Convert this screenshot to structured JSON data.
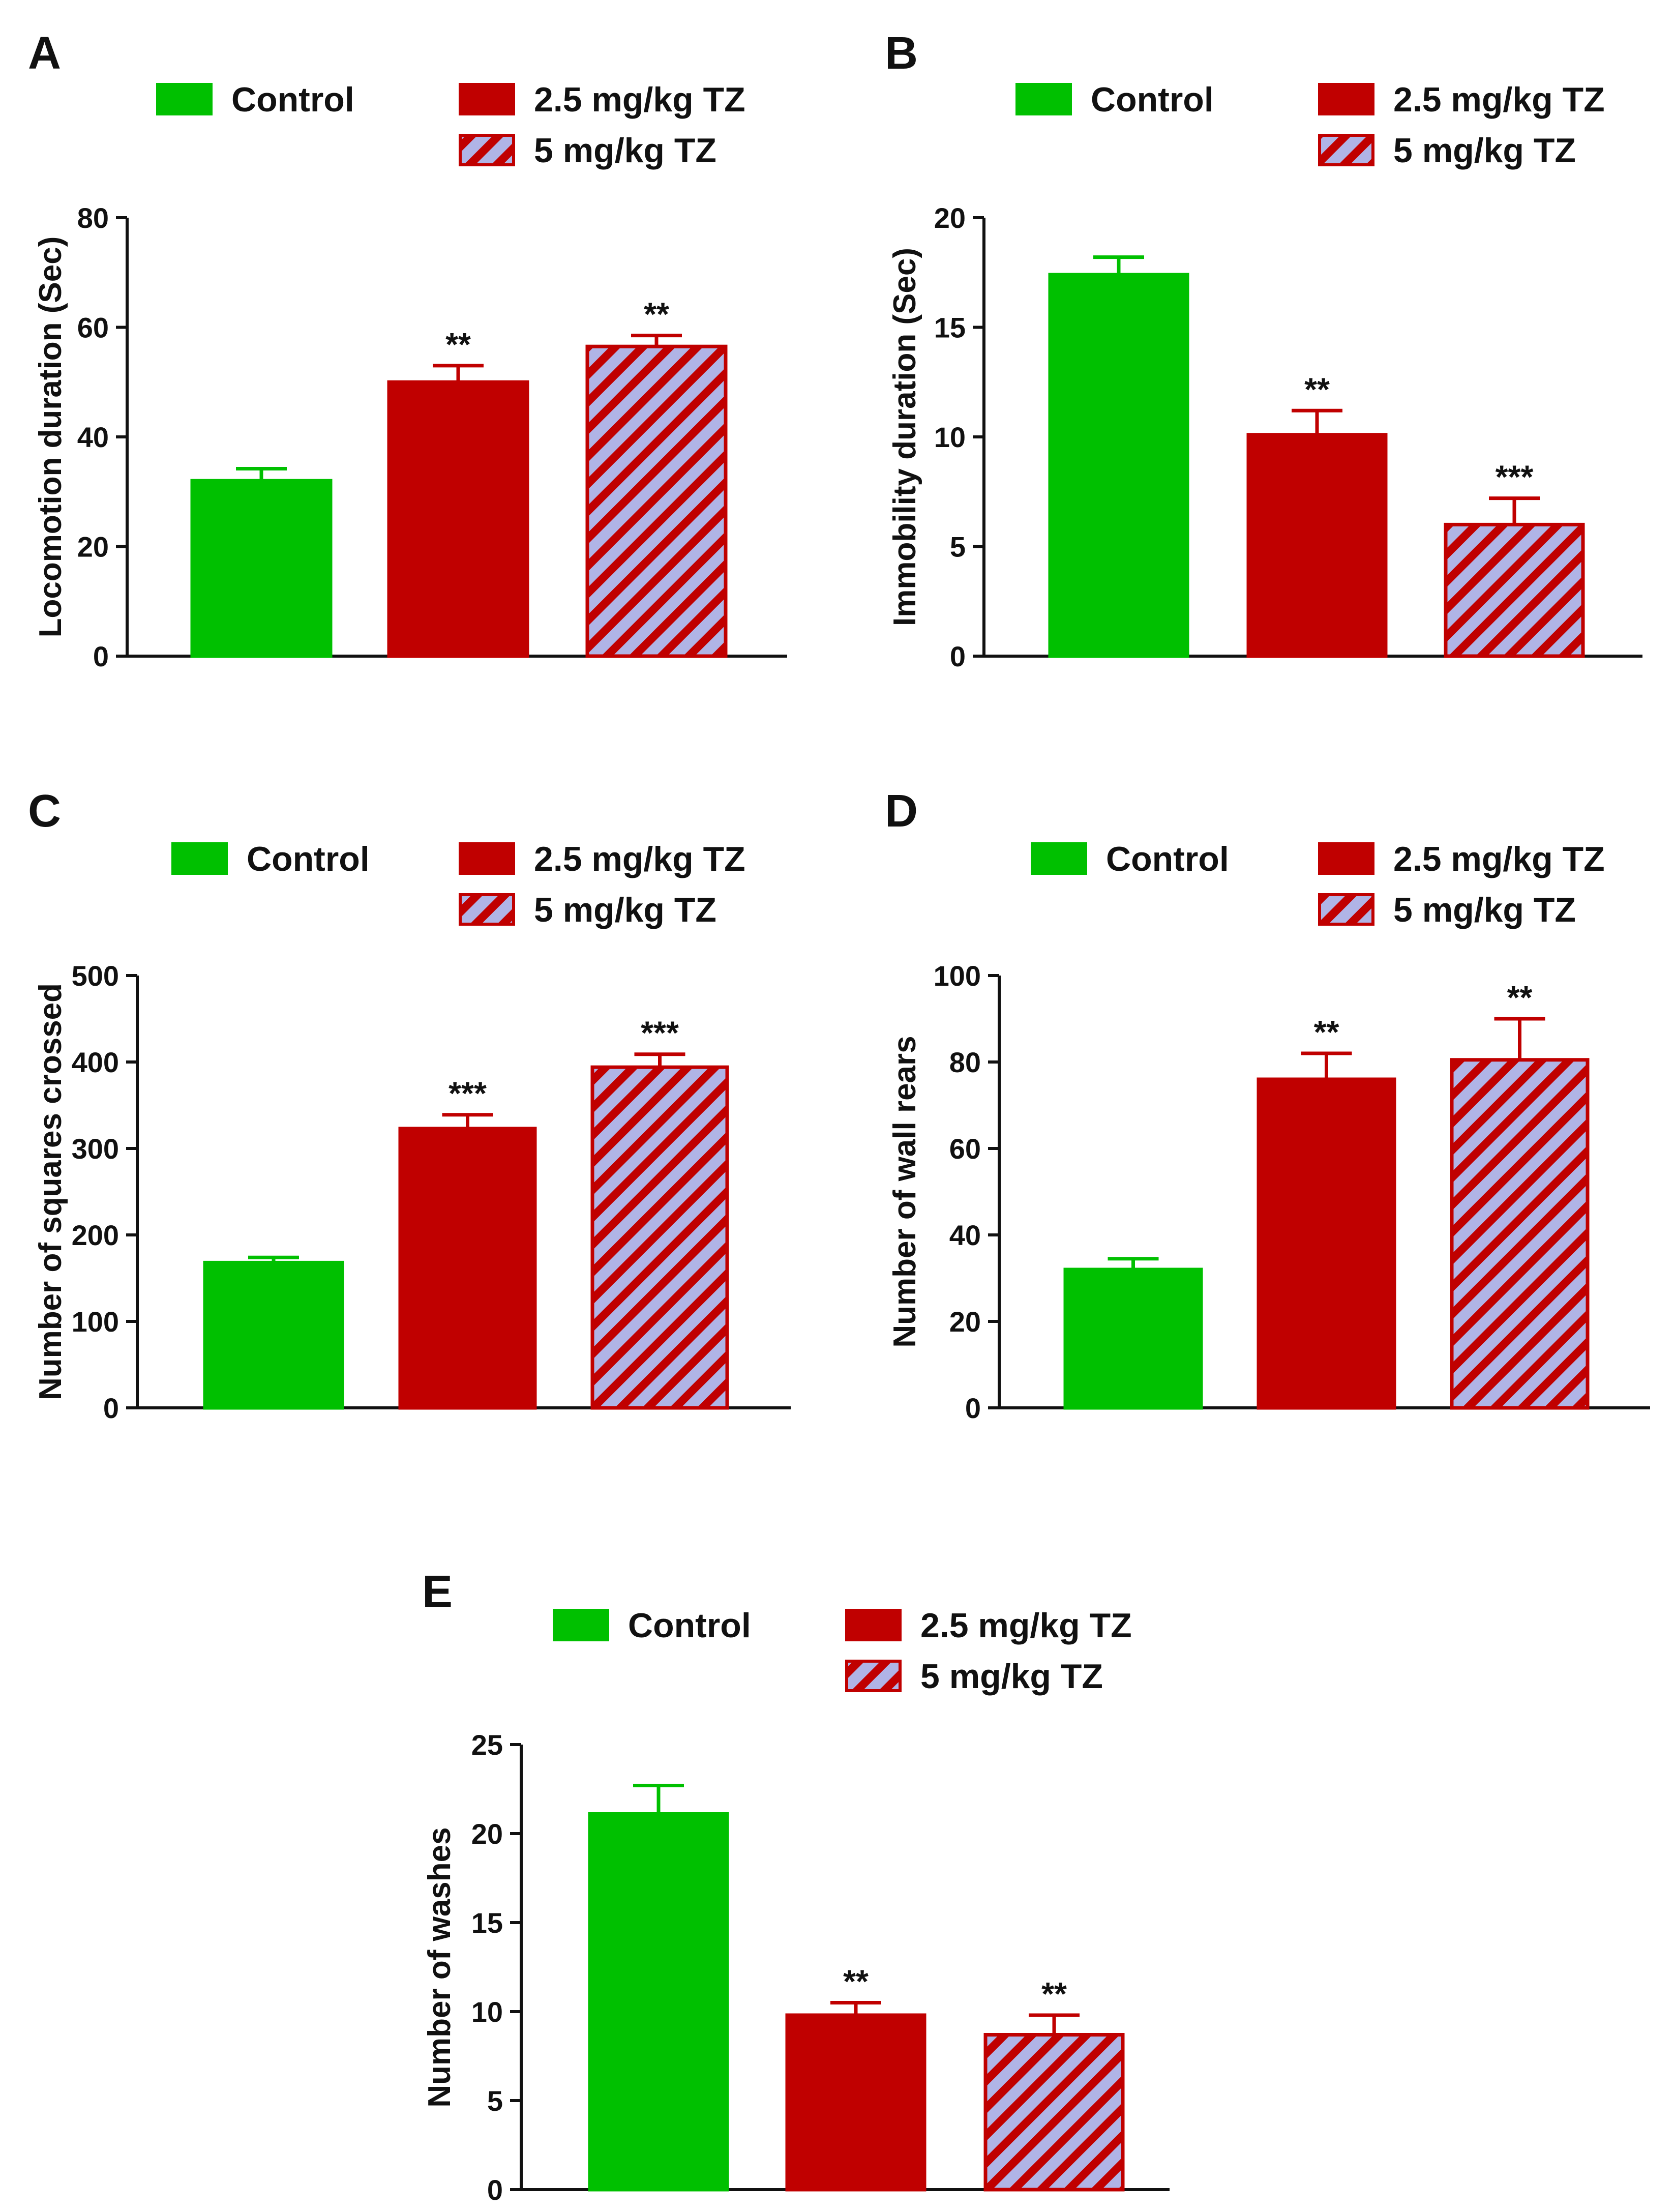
{
  "colors": {
    "control": "#00c000",
    "dose_2_5": "#c00000",
    "dose_5_stripe": "#b0b4e6",
    "axis": "#111111"
  },
  "chart_data": [
    {
      "type": "bar",
      "panel": "A",
      "categories": [
        "Control",
        "2.5 mg/kg TZ",
        "5 mg/kg TZ"
      ],
      "values": [
        32,
        50,
        56.5
      ],
      "errors": [
        2.2,
        3.0,
        2.0
      ],
      "significance": [
        "",
        "**",
        "**"
      ],
      "legend": [
        "Control",
        "2.5 mg/kg TZ",
        "5 mg/kg TZ"
      ],
      "ylabel": "Locomotion duration  (Sec)",
      "ylim": [
        0,
        80
      ],
      "yticks": [
        "0",
        "20",
        "40",
        "60",
        "80"
      ],
      "tick_values": [
        0,
        20,
        40,
        60,
        80
      ]
    },
    {
      "type": "bar",
      "panel": "B",
      "categories": [
        "Control",
        "2.5 mg/kg TZ",
        "5 mg/kg TZ"
      ],
      "values": [
        17.4,
        10.1,
        6.0
      ],
      "errors": [
        0.8,
        1.1,
        1.2
      ],
      "significance": [
        "",
        "**",
        "***"
      ],
      "legend": [
        "Control",
        "2.5 mg/kg TZ",
        "5 mg/kg TZ"
      ],
      "ylabel": "Immobility duration  (Sec)",
      "ylim": [
        0,
        20
      ],
      "yticks": [
        "0",
        "5",
        "10",
        "15",
        "20"
      ],
      "tick_values": [
        0,
        5,
        10,
        15,
        20
      ]
    },
    {
      "type": "bar",
      "panel": "C",
      "categories": [
        "Control",
        "2.5 mg/kg TZ",
        "5 mg/kg TZ"
      ],
      "values": [
        168,
        323,
        394
      ],
      "errors": [
        6,
        16,
        15
      ],
      "significance": [
        "",
        "***",
        "***"
      ],
      "legend": [
        "Control",
        "2.5 mg/kg TZ",
        "5 mg/kg TZ"
      ],
      "ylabel": "Number of squares crossed",
      "ylim": [
        0,
        500
      ],
      "yticks": [
        "0",
        "100",
        "200",
        "300",
        "400",
        "500"
      ],
      "tick_values": [
        0,
        100,
        200,
        300,
        400,
        500
      ]
    },
    {
      "type": "bar",
      "panel": "D",
      "categories": [
        "Control",
        "2.5 mg/kg TZ",
        "5 mg/kg TZ"
      ],
      "values": [
        32,
        76,
        80.5
      ],
      "errors": [
        2.5,
        6,
        9.5
      ],
      "significance": [
        "",
        "**",
        "**"
      ],
      "legend": [
        "Control",
        "2.5 mg/kg TZ",
        "5 mg/kg TZ"
      ],
      "ylabel": "Number of wall rears",
      "ylim": [
        0,
        100
      ],
      "yticks": [
        "0",
        "20",
        "40",
        "60",
        "80",
        "100"
      ],
      "tick_values": [
        0,
        20,
        40,
        60,
        80,
        100
      ]
    },
    {
      "type": "bar",
      "panel": "E",
      "categories": [
        "Control",
        "2.5 mg/kg TZ",
        "5 mg/kg TZ"
      ],
      "values": [
        21.1,
        9.8,
        8.7
      ],
      "errors": [
        1.6,
        0.7,
        1.1
      ],
      "significance": [
        "",
        "**",
        "**"
      ],
      "legend": [
        "Control",
        "2.5 mg/kg TZ",
        "5 mg/kg TZ"
      ],
      "ylabel": "Number of washes",
      "ylim": [
        0,
        25
      ],
      "yticks": [
        "0",
        "5",
        "10",
        "15",
        "20",
        "25"
      ],
      "tick_values": [
        0,
        5,
        10,
        15,
        20,
        25
      ]
    }
  ]
}
